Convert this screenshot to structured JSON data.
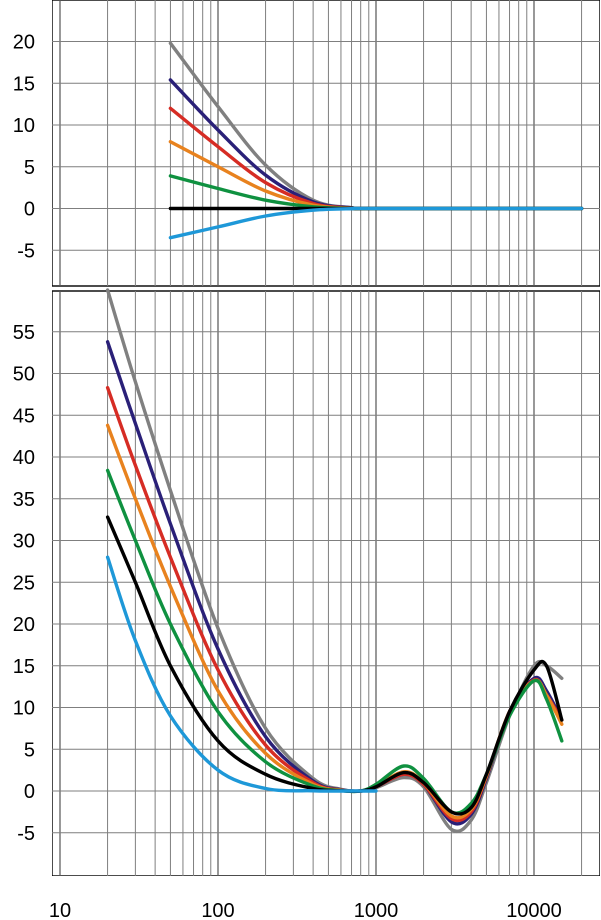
{
  "chart_data": [
    {
      "type": "line",
      "title": "",
      "xlabel": "",
      "ylabel": "",
      "xscale": "log",
      "xlim": [
        20,
        20000
      ],
      "ylim": [
        -10,
        25
      ],
      "yticks": [
        -5,
        0,
        5,
        10,
        15,
        20
      ],
      "grid": true,
      "legend": "none",
      "series": [
        {
          "color": "#808080",
          "x": [
            50,
            100,
            200,
            400,
            700,
            1000,
            20000
          ],
          "y": [
            19.8,
            12.2,
            5.2,
            1.0,
            0.1,
            0,
            0
          ]
        },
        {
          "color": "#2a2078",
          "x": [
            50,
            100,
            200,
            400,
            700,
            1000,
            20000
          ],
          "y": [
            15.4,
            9.4,
            4.0,
            0.8,
            0.1,
            0,
            0
          ]
        },
        {
          "color": "#d62c24",
          "x": [
            50,
            100,
            200,
            400,
            700,
            1000,
            20000
          ],
          "y": [
            12.0,
            7.4,
            3.1,
            0.6,
            0.05,
            0,
            0
          ]
        },
        {
          "color": "#e8821e",
          "x": [
            50,
            100,
            200,
            400,
            700,
            1000,
            20000
          ],
          "y": [
            8.0,
            5.0,
            2.1,
            0.4,
            0.03,
            0,
            0
          ]
        },
        {
          "color": "#0f9140",
          "x": [
            50,
            100,
            200,
            400,
            700,
            1000,
            20000
          ],
          "y": [
            3.9,
            2.4,
            1.0,
            0.2,
            0.02,
            0,
            0
          ]
        },
        {
          "color": "#000000",
          "x": [
            50,
            100,
            200,
            400,
            700,
            1000,
            20000
          ],
          "y": [
            0,
            0,
            0,
            0,
            0,
            0,
            0
          ]
        },
        {
          "color": "#1e98d8",
          "x": [
            50,
            100,
            200,
            400,
            700,
            1000,
            20000
          ],
          "y": [
            -3.5,
            -2.2,
            -0.9,
            -0.2,
            -0.02,
            0,
            0
          ]
        }
      ]
    },
    {
      "type": "line",
      "title": "",
      "xlabel": "",
      "ylabel": "",
      "xscale": "log",
      "xlim": [
        20,
        20000
      ],
      "ylim": [
        -10,
        60
      ],
      "yticks": [
        -5,
        0,
        5,
        10,
        15,
        20,
        25,
        30,
        35,
        40,
        45,
        50,
        55
      ],
      "xticks": [
        10,
        100,
        1000,
        10000
      ],
      "xtick_labels": [
        "10",
        "100",
        "1000",
        "10000"
      ],
      "grid": true,
      "legend": "none",
      "series": [
        {
          "color": "#808080",
          "x": [
            20,
            30,
            50,
            100,
            200,
            400,
            600,
            800,
            1000,
            1500,
            2000,
            3000,
            4000,
            5000,
            7000,
            10000,
            12000,
            15000
          ],
          "y": [
            60,
            49,
            36,
            19.5,
            7.5,
            1.5,
            0.2,
            0,
            0.4,
            1.6,
            0.5,
            -4.6,
            -3.5,
            1,
            9,
            15,
            15,
            13.5
          ]
        },
        {
          "color": "#2a2078",
          "x": [
            20,
            30,
            50,
            100,
            200,
            400,
            600,
            800,
            1000,
            1500,
            2000,
            3000,
            4000,
            5000,
            7000,
            10000,
            12000,
            15000
          ],
          "y": [
            53.8,
            44,
            32,
            17,
            6.5,
            1.2,
            0.15,
            0,
            0.5,
            2,
            0.8,
            -3.7,
            -2.8,
            1.5,
            9.5,
            13.5,
            12,
            8.5
          ]
        },
        {
          "color": "#d62c24",
          "x": [
            20,
            30,
            50,
            100,
            200,
            400,
            600,
            800,
            1000,
            1500,
            2000,
            3000,
            4000,
            5000,
            7000,
            10000,
            12000,
            15000
          ],
          "y": [
            48.3,
            39,
            28,
            14.5,
            5.5,
            1,
            0.1,
            0,
            0.5,
            2,
            0.8,
            -3.3,
            -2.5,
            1.7,
            9.5,
            13.3,
            11.5,
            8.5
          ]
        },
        {
          "color": "#e8821e",
          "x": [
            20,
            30,
            50,
            100,
            200,
            400,
            600,
            800,
            1000,
            1500,
            2000,
            3000,
            4000,
            5000,
            7000,
            10000,
            12000,
            15000
          ],
          "y": [
            43.8,
            35,
            24.5,
            12,
            4.5,
            0.8,
            0.1,
            0,
            0.6,
            2.3,
            1,
            -3,
            -2.2,
            1.8,
            9.5,
            13.2,
            11.5,
            8
          ]
        },
        {
          "color": "#0f9140",
          "x": [
            20,
            30,
            50,
            100,
            200,
            400,
            600,
            800,
            1000,
            1500,
            2000,
            3000,
            4000,
            5000,
            7000,
            10000,
            12000,
            15000
          ],
          "y": [
            38.4,
            30,
            20,
            9.5,
            3.5,
            0.6,
            0.05,
            0,
            0.8,
            3,
            1.5,
            -2.5,
            -1.5,
            2,
            9,
            13.2,
            11,
            6
          ]
        },
        {
          "color": "#000000",
          "x": [
            20,
            30,
            50,
            100,
            200,
            400,
            600,
            800,
            1000,
            1500,
            2000,
            3000,
            4000,
            5000,
            7000,
            10000,
            12000,
            15000
          ],
          "y": [
            32.8,
            25,
            15,
            6,
            2,
            0.3,
            0.03,
            0,
            0.5,
            2.2,
            1,
            -2.5,
            -2,
            2,
            9.5,
            14.5,
            15,
            8.5
          ]
        },
        {
          "color": "#1e98d8",
          "x": [
            20,
            30,
            50,
            100,
            200,
            400,
            600,
            800,
            1000
          ],
          "y": [
            28,
            18,
            9,
            2.5,
            0.3,
            0.02,
            0,
            0,
            0
          ]
        }
      ]
    }
  ]
}
